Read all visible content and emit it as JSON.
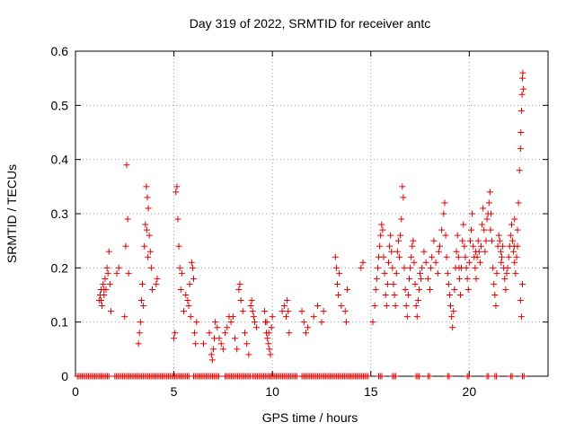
{
  "chart_data": {
    "type": "scatter",
    "title": "Day 319 of 2022, SRMTID for receiver antc",
    "xlabel": "GPS time / hours",
    "ylabel": "SRMTID / TECUs",
    "xlim": [
      0,
      24
    ],
    "ylim": [
      0,
      0.6
    ],
    "xticks": [
      0,
      5,
      10,
      15,
      20
    ],
    "yticks": [
      0,
      0.1,
      0.2,
      0.3,
      0.4,
      0.5,
      0.6
    ],
    "xtick_labels": [
      "0",
      "5",
      "10",
      "15",
      "20"
    ],
    "ytick_labels": [
      "0",
      "0.1",
      "0.2",
      "0.3",
      "0.4",
      "0.5",
      "0.6"
    ],
    "grid": true,
    "marker": "+",
    "color": "#e00000",
    "series": [
      {
        "name": "SRMTID",
        "points": [
          [
            1.2,
            0.14
          ],
          [
            1.25,
            0.15
          ],
          [
            1.3,
            0.16
          ],
          [
            1.35,
            0.13
          ],
          [
            1.4,
            0.17
          ],
          [
            1.45,
            0.15
          ],
          [
            1.5,
            0.18
          ],
          [
            1.55,
            0.16
          ],
          [
            1.6,
            0.2
          ],
          [
            1.65,
            0.19
          ],
          [
            1.7,
            0.23
          ],
          [
            1.75,
            0.17
          ],
          [
            1.8,
            0.12
          ],
          [
            1.3,
            0.14
          ],
          [
            1.45,
            0.16
          ],
          [
            2.1,
            0.19
          ],
          [
            2.2,
            0.2
          ],
          [
            2.5,
            0.11
          ],
          [
            2.55,
            0.24
          ],
          [
            2.6,
            0.39
          ],
          [
            2.65,
            0.29
          ],
          [
            2.7,
            0.19
          ],
          [
            3.2,
            0.06
          ],
          [
            3.25,
            0.08
          ],
          [
            3.3,
            0.1
          ],
          [
            3.35,
            0.14
          ],
          [
            3.4,
            0.17
          ],
          [
            3.45,
            0.13
          ],
          [
            3.5,
            0.24
          ],
          [
            3.55,
            0.28
          ],
          [
            3.6,
            0.35
          ],
          [
            3.65,
            0.33
          ],
          [
            3.7,
            0.31
          ],
          [
            3.75,
            0.26
          ],
          [
            3.8,
            0.23
          ],
          [
            3.85,
            0.2
          ],
          [
            3.9,
            0.16
          ],
          [
            3.62,
            0.27
          ],
          [
            3.68,
            0.22
          ],
          [
            4.1,
            0.17
          ],
          [
            4.15,
            0.18
          ],
          [
            5.0,
            0.07
          ],
          [
            5.05,
            0.08
          ],
          [
            5.1,
            0.34
          ],
          [
            5.15,
            0.35
          ],
          [
            5.2,
            0.29
          ],
          [
            5.25,
            0.24
          ],
          [
            5.3,
            0.2
          ],
          [
            5.35,
            0.16
          ],
          [
            5.4,
            0.19
          ],
          [
            5.5,
            0.12
          ],
          [
            5.6,
            0.15
          ],
          [
            5.7,
            0.14
          ],
          [
            5.8,
            0.17
          ],
          [
            5.85,
            0.11
          ],
          [
            5.9,
            0.21
          ],
          [
            5.95,
            0.2
          ],
          [
            6.0,
            0.18
          ],
          [
            6.05,
            0.08
          ],
          [
            6.1,
            0.06
          ],
          [
            6.15,
            0.1
          ],
          [
            5.75,
            0.13
          ],
          [
            6.5,
            0.06
          ],
          [
            6.8,
            0.08
          ],
          [
            6.9,
            0.04
          ],
          [
            6.95,
            0.03
          ],
          [
            7.0,
            0.05
          ],
          [
            7.05,
            0.07
          ],
          [
            7.1,
            0.1
          ],
          [
            7.2,
            0.09
          ],
          [
            7.3,
            0.07
          ],
          [
            7.4,
            0.06
          ],
          [
            7.5,
            0.05
          ],
          [
            7.6,
            0.08
          ],
          [
            7.7,
            0.09
          ],
          [
            7.8,
            0.11
          ],
          [
            7.9,
            0.1
          ],
          [
            8.0,
            0.11
          ],
          [
            8.1,
            0.07
          ],
          [
            8.2,
            0.05
          ],
          [
            8.3,
            0.16
          ],
          [
            8.35,
            0.17
          ],
          [
            8.4,
            0.14
          ],
          [
            8.5,
            0.12
          ],
          [
            8.6,
            0.08
          ],
          [
            8.7,
            0.06
          ],
          [
            8.8,
            0.04
          ],
          [
            8.9,
            0.13
          ],
          [
            8.95,
            0.14
          ],
          [
            9.0,
            0.12
          ],
          [
            9.05,
            0.11
          ],
          [
            9.1,
            0.1
          ],
          [
            9.2,
            0.09
          ],
          [
            9.6,
            0.12
          ],
          [
            9.65,
            0.1
          ],
          [
            9.7,
            0.08
          ],
          [
            9.75,
            0.07
          ],
          [
            9.8,
            0.06
          ],
          [
            9.85,
            0.05
          ],
          [
            9.9,
            0.04
          ],
          [
            9.95,
            0.09
          ],
          [
            10.0,
            0.11
          ],
          [
            9.72,
            0.1
          ],
          [
            9.82,
            0.08
          ],
          [
            10.5,
            0.12
          ],
          [
            10.6,
            0.13
          ],
          [
            10.7,
            0.11
          ],
          [
            10.75,
            0.14
          ],
          [
            10.8,
            0.12
          ],
          [
            10.85,
            0.08
          ],
          [
            11.5,
            0.12
          ],
          [
            11.6,
            0.1
          ],
          [
            11.7,
            0.08
          ],
          [
            11.8,
            0.09
          ],
          [
            12.1,
            0.11
          ],
          [
            12.3,
            0.13
          ],
          [
            12.5,
            0.1
          ],
          [
            12.6,
            0.12
          ],
          [
            13.2,
            0.22
          ],
          [
            13.25,
            0.2
          ],
          [
            13.3,
            0.17
          ],
          [
            13.35,
            0.15
          ],
          [
            13.4,
            0.19
          ],
          [
            13.5,
            0.13
          ],
          [
            13.7,
            0.12
          ],
          [
            13.75,
            0.1
          ],
          [
            13.8,
            0.16
          ],
          [
            14.5,
            0.2
          ],
          [
            14.6,
            0.21
          ],
          [
            15.1,
            0.1
          ],
          [
            15.2,
            0.13
          ],
          [
            15.25,
            0.16
          ],
          [
            15.3,
            0.18
          ],
          [
            15.35,
            0.2
          ],
          [
            15.4,
            0.22
          ],
          [
            15.45,
            0.24
          ],
          [
            15.5,
            0.26
          ],
          [
            15.55,
            0.28
          ],
          [
            15.6,
            0.27
          ],
          [
            15.65,
            0.22
          ],
          [
            15.7,
            0.19
          ],
          [
            15.75,
            0.15
          ],
          [
            15.8,
            0.13
          ],
          [
            15.85,
            0.17
          ],
          [
            15.9,
            0.21
          ],
          [
            15.95,
            0.24
          ],
          [
            16.0,
            0.26
          ],
          [
            16.05,
            0.23
          ],
          [
            16.1,
            0.2
          ],
          [
            16.15,
            0.17
          ],
          [
            16.2,
            0.15
          ],
          [
            16.25,
            0.13
          ],
          [
            16.3,
            0.19
          ],
          [
            16.35,
            0.23
          ],
          [
            16.4,
            0.25
          ],
          [
            16.45,
            0.22
          ],
          [
            16.5,
            0.26
          ],
          [
            16.55,
            0.29
          ],
          [
            16.6,
            0.35
          ],
          [
            16.65,
            0.33
          ],
          [
            16.7,
            0.2
          ],
          [
            16.75,
            0.16
          ],
          [
            16.8,
            0.13
          ],
          [
            16.85,
            0.11
          ],
          [
            16.9,
            0.15
          ],
          [
            16.95,
            0.18
          ],
          [
            17.0,
            0.2
          ],
          [
            17.05,
            0.22
          ],
          [
            17.1,
            0.24
          ],
          [
            17.15,
            0.25
          ],
          [
            17.2,
            0.21
          ],
          [
            17.25,
            0.17
          ],
          [
            17.3,
            0.13
          ],
          [
            17.35,
            0.11
          ],
          [
            17.4,
            0.14
          ],
          [
            17.45,
            0.16
          ],
          [
            17.5,
            0.19
          ],
          [
            17.6,
            0.2
          ],
          [
            17.7,
            0.23
          ],
          [
            17.8,
            0.21
          ],
          [
            17.9,
            0.18
          ],
          [
            18.0,
            0.16
          ],
          [
            18.1,
            0.22
          ],
          [
            18.2,
            0.25
          ],
          [
            18.3,
            0.21
          ],
          [
            18.4,
            0.19
          ],
          [
            18.5,
            0.24
          ],
          [
            18.6,
            0.27
          ],
          [
            18.7,
            0.3
          ],
          [
            18.75,
            0.32
          ],
          [
            18.8,
            0.26
          ],
          [
            18.85,
            0.22
          ],
          [
            18.9,
            0.19
          ],
          [
            18.95,
            0.17
          ],
          [
            19.0,
            0.15
          ],
          [
            19.05,
            0.13
          ],
          [
            19.1,
            0.11
          ],
          [
            19.15,
            0.09
          ],
          [
            19.2,
            0.12
          ],
          [
            19.25,
            0.16
          ],
          [
            19.3,
            0.2
          ],
          [
            19.35,
            0.23
          ],
          [
            19.4,
            0.26
          ],
          [
            19.45,
            0.22
          ],
          [
            19.5,
            0.18
          ],
          [
            19.55,
            0.15
          ],
          [
            19.6,
            0.2
          ],
          [
            19.65,
            0.25
          ],
          [
            19.7,
            0.28
          ],
          [
            19.75,
            0.24
          ],
          [
            19.8,
            0.22
          ],
          [
            19.85,
            0.2
          ],
          [
            19.9,
            0.18
          ],
          [
            19.95,
            0.16
          ],
          [
            20.0,
            0.21
          ],
          [
            20.05,
            0.25
          ],
          [
            20.1,
            0.27
          ],
          [
            20.15,
            0.3
          ],
          [
            20.2,
            0.24
          ],
          [
            20.25,
            0.22
          ],
          [
            20.3,
            0.2
          ],
          [
            20.35,
            0.18
          ],
          [
            20.4,
            0.22
          ],
          [
            20.45,
            0.25
          ],
          [
            20.5,
            0.23
          ],
          [
            20.55,
            0.21
          ],
          [
            20.6,
            0.24
          ],
          [
            20.65,
            0.28
          ],
          [
            20.7,
            0.31
          ],
          [
            20.75,
            0.27
          ],
          [
            20.8,
            0.23
          ],
          [
            20.85,
            0.25
          ],
          [
            20.9,
            0.29
          ],
          [
            20.95,
            0.3
          ],
          [
            21.0,
            0.32
          ],
          [
            21.05,
            0.34
          ],
          [
            21.1,
            0.3
          ],
          [
            21.15,
            0.25
          ],
          [
            21.2,
            0.2
          ],
          [
            21.25,
            0.17
          ],
          [
            21.3,
            0.15
          ],
          [
            21.35,
            0.13
          ],
          [
            21.4,
            0.19
          ],
          [
            21.45,
            0.24
          ],
          [
            21.5,
            0.26
          ],
          [
            21.55,
            0.25
          ],
          [
            21.6,
            0.23
          ],
          [
            21.65,
            0.22
          ],
          [
            21.7,
            0.24
          ],
          [
            21.75,
            0.2
          ],
          [
            21.8,
            0.18
          ],
          [
            21.85,
            0.16
          ],
          [
            21.9,
            0.19
          ],
          [
            21.95,
            0.2
          ],
          [
            22.0,
            0.22
          ],
          [
            22.05,
            0.24
          ],
          [
            22.1,
            0.26
          ],
          [
            22.15,
            0.28
          ],
          [
            22.2,
            0.25
          ],
          [
            22.25,
            0.23
          ],
          [
            22.3,
            0.21
          ],
          [
            22.35,
            0.19
          ],
          [
            22.4,
            0.22
          ],
          [
            22.45,
            0.24
          ],
          [
            22.5,
            0.32
          ],
          [
            22.55,
            0.38
          ],
          [
            22.6,
            0.42
          ],
          [
            22.62,
            0.45
          ],
          [
            22.65,
            0.49
          ],
          [
            22.68,
            0.52
          ],
          [
            22.7,
            0.55
          ],
          [
            22.72,
            0.56
          ],
          [
            22.75,
            0.53
          ],
          [
            22.6,
            0.14
          ],
          [
            22.65,
            0.11
          ],
          [
            22.7,
            0.17
          ],
          [
            22.45,
            0.27
          ],
          [
            22.3,
            0.29
          ],
          [
            17.55,
            0.18
          ],
          [
            18.05,
            0.2
          ],
          [
            18.45,
            0.23
          ],
          [
            19.48,
            0.2
          ],
          [
            20.33,
            0.23
          ],
          [
            21.08,
            0.27
          ],
          [
            21.62,
            0.21
          ],
          [
            22.28,
            0.24
          ]
        ]
      },
      {
        "name": "zero-line",
        "x_ranges": [
          [
            0.1,
            1.7
          ],
          [
            2.0,
            5.8
          ],
          [
            6.0,
            7.3
          ],
          [
            7.6,
            8.9
          ],
          [
            9.0,
            11.3
          ],
          [
            11.5,
            14.9
          ],
          [
            15.4,
            15.6
          ],
          [
            16.1,
            16.3
          ],
          [
            17.3,
            17.5
          ],
          [
            17.9,
            18.0
          ],
          [
            18.9,
            19.0
          ],
          [
            19.9,
            20.0
          ],
          [
            20.9,
            21.0
          ],
          [
            21.3,
            21.4
          ],
          [
            22.1,
            22.2
          ],
          [
            22.7,
            22.8
          ]
        ],
        "y": 0
      }
    ]
  }
}
